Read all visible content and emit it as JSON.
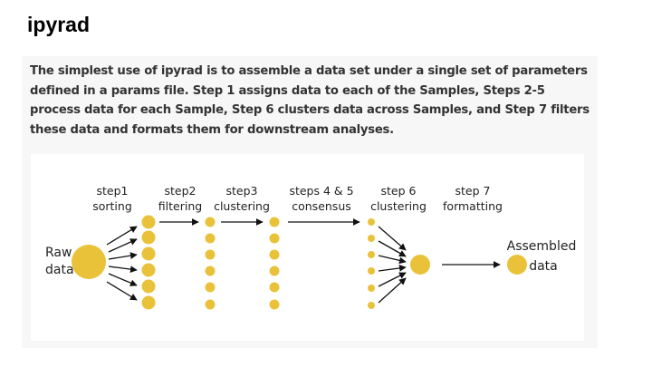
{
  "page": {
    "title": "ipyrad",
    "description": "The simplest use of ipyrad is to assemble a data set under a single set of parameters defined in a params file. Step 1 assigns data to each of the Samples, Steps 2-5 process data for each Sample, Step 6 clusters data across Samples, and Step 7 filters these data and formats them for downstream analyses."
  },
  "diagram": {
    "colors": {
      "dot": "#e9c23a",
      "arrow": "#111111"
    },
    "raw_label": [
      "Raw",
      "data"
    ],
    "assembled_label": [
      "Assembled",
      "data"
    ],
    "steps": [
      {
        "line1": "step1",
        "line2": "sorting"
      },
      {
        "line1": "step2",
        "line2": "filtering"
      },
      {
        "line1": "step3",
        "line2": "clustering"
      },
      {
        "line1": "steps 4 & 5",
        "line2": "consensus"
      },
      {
        "line1": "step 6",
        "line2": "clustering"
      },
      {
        "line1": "step 7",
        "line2": "formatting"
      }
    ]
  }
}
